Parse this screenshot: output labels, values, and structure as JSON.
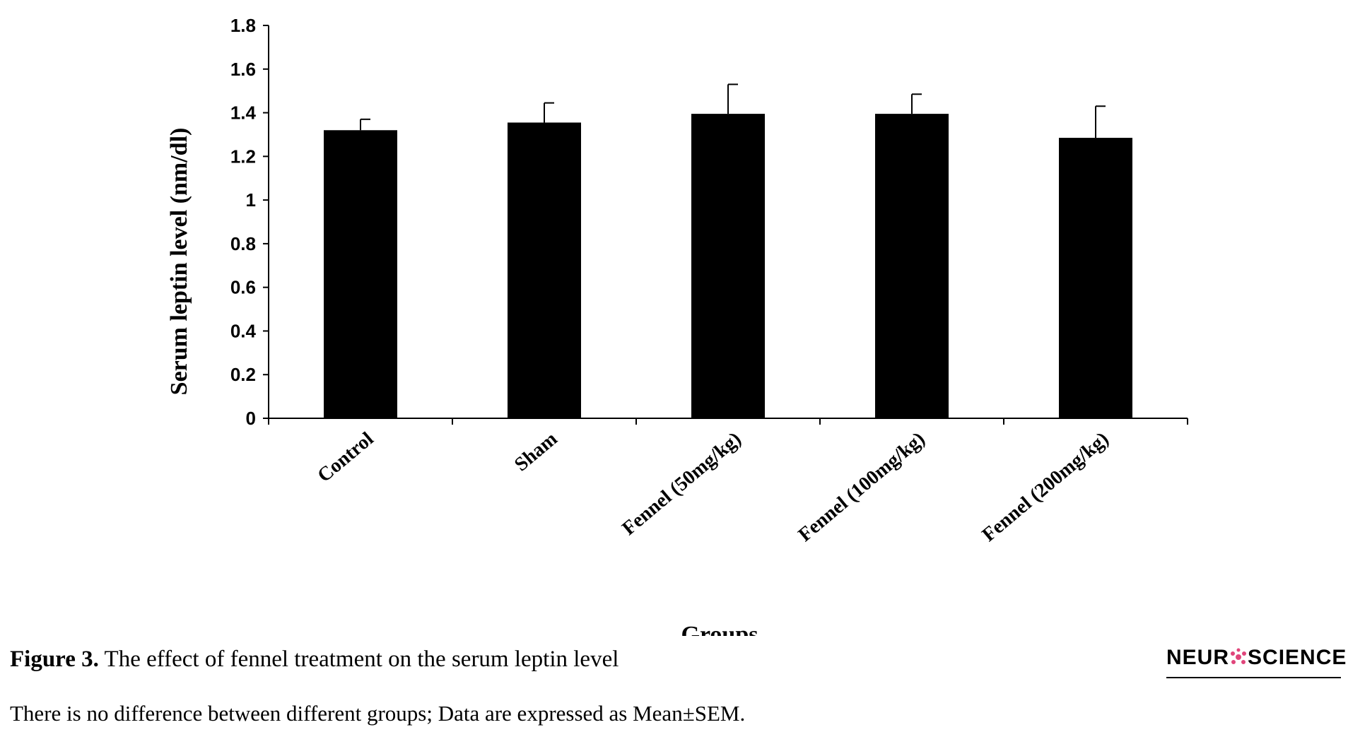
{
  "chart_data": {
    "type": "bar",
    "categories": [
      "Control",
      "Sham",
      "Fennel (50mg/kg)",
      "Fennel (100mg/kg)",
      "Fennel (200mg/kg)"
    ],
    "values": [
      1.32,
      1.355,
      1.395,
      1.395,
      1.285
    ],
    "error": [
      0.05,
      0.09,
      0.135,
      0.09,
      0.145
    ],
    "xlabel": "Groups",
    "ylabel": "Serum leptin level (nm/dl)",
    "ylim": [
      0,
      1.8
    ],
    "yticks": [
      "0",
      "0.2",
      "0.4",
      "0.6",
      "0.8",
      "1",
      "1.2",
      "1.4",
      "1.6",
      "1.8"
    ],
    "bar_color": "#000000",
    "grid": false
  },
  "caption": {
    "label": "Figure 3.",
    "text": " The effect of fennel treatment on the serum leptin level",
    "note": "There is no difference between different groups; Data are expressed as Mean±SEM."
  },
  "logo": {
    "left": "NEUR",
    "right": "SCIENCE"
  }
}
